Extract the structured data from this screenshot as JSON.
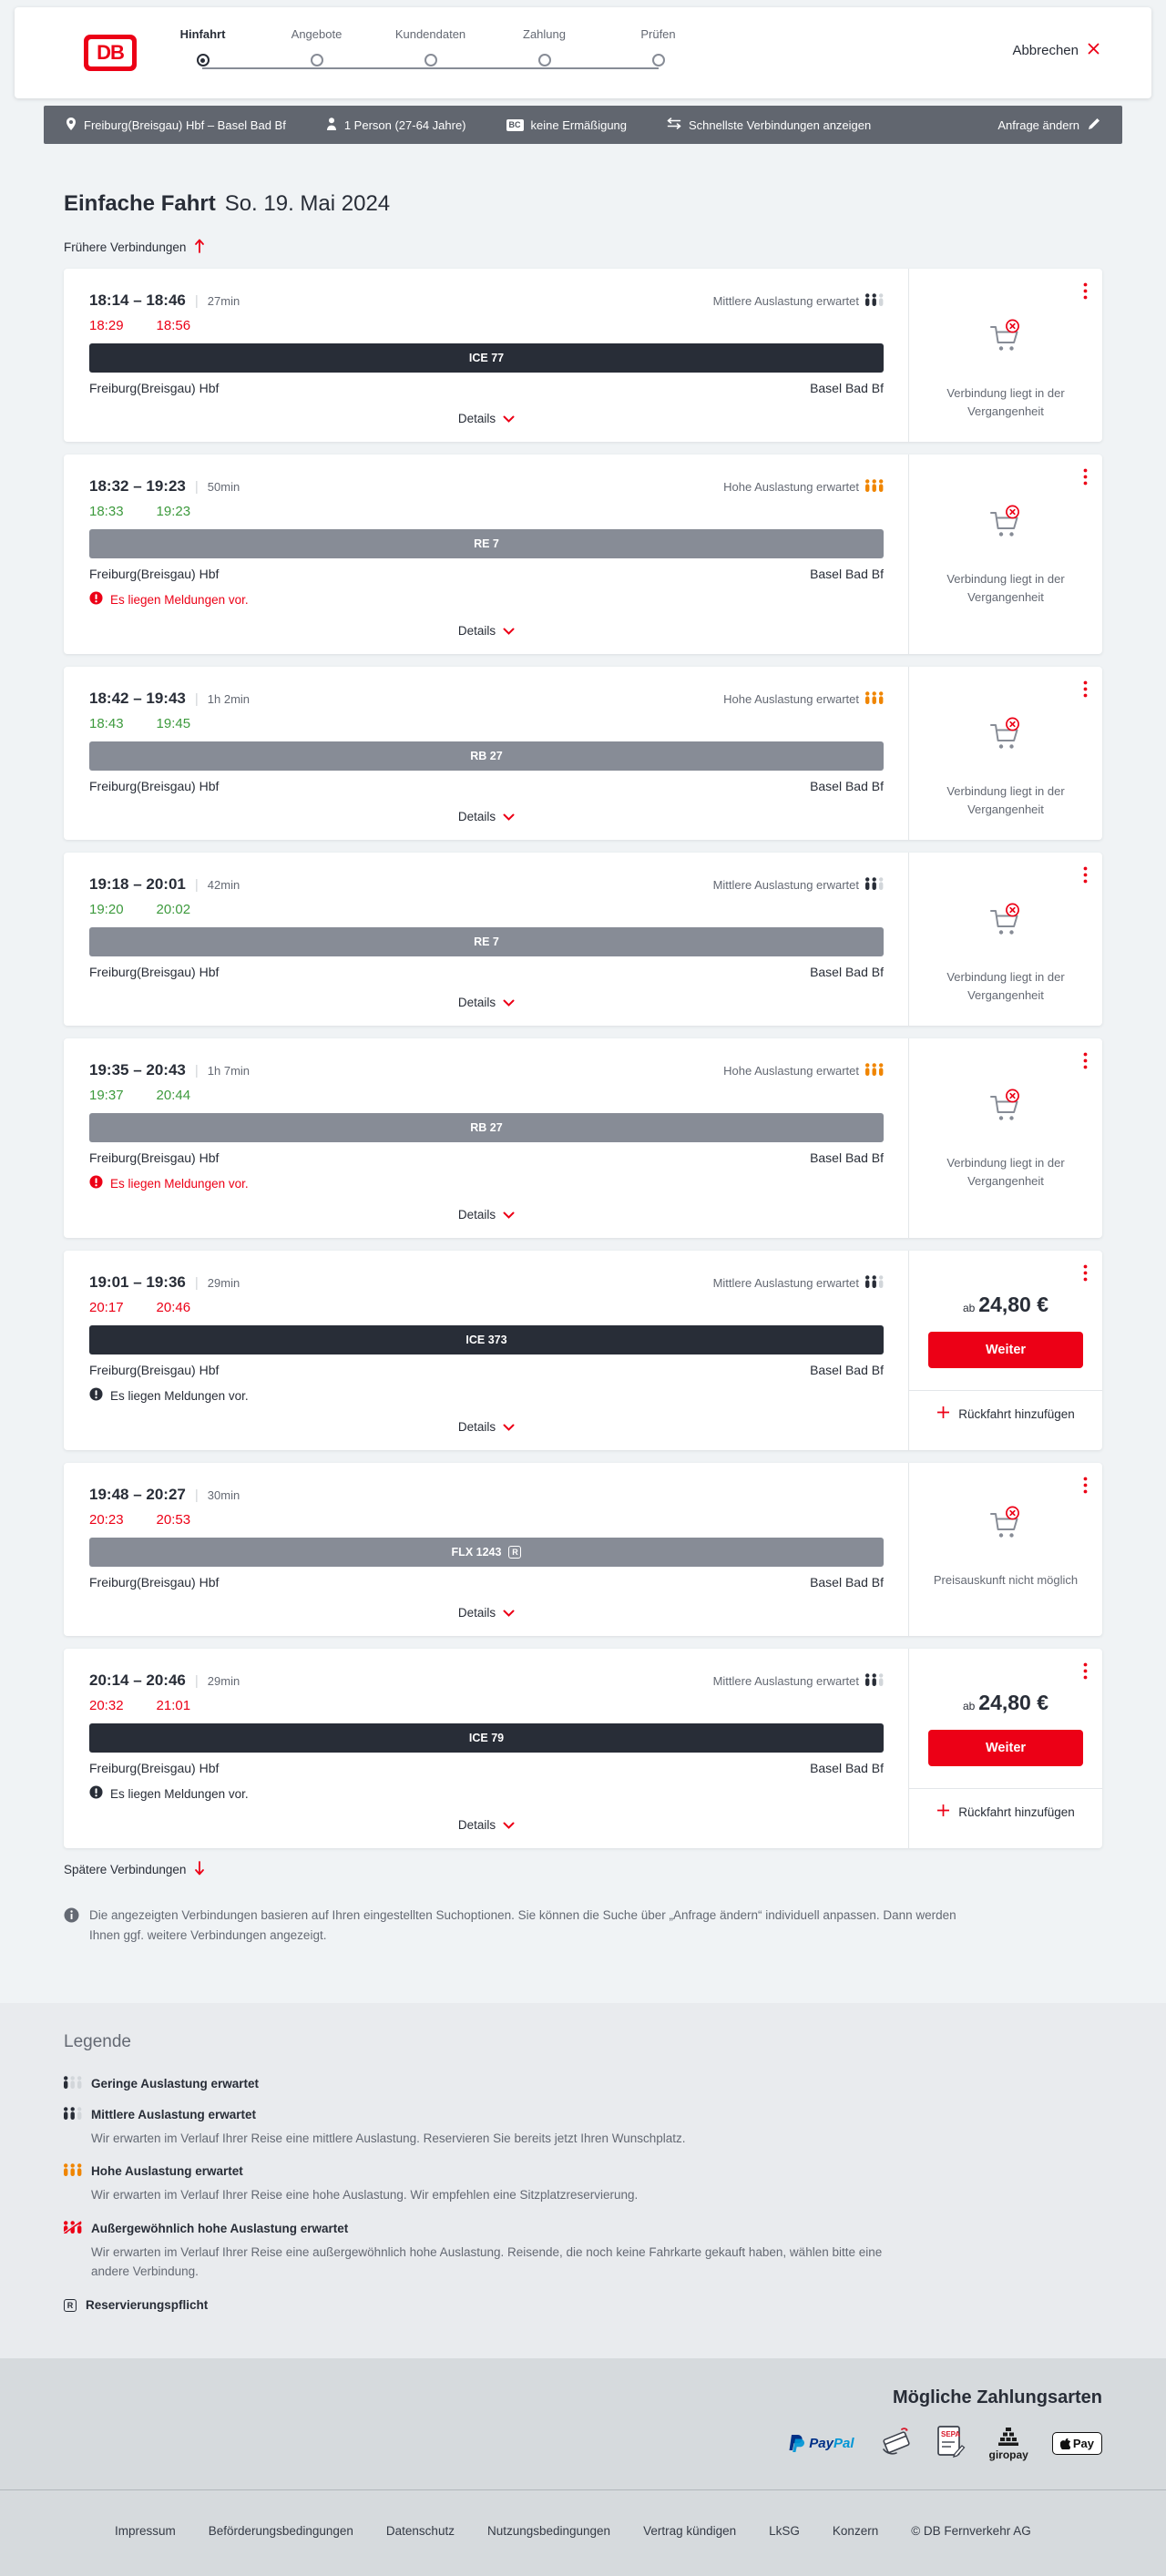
{
  "header": {
    "logo_text": "DB",
    "steps": [
      {
        "label": "Hinfahrt",
        "active": true
      },
      {
        "label": "Angebote",
        "active": false
      },
      {
        "label": "Kundendaten",
        "active": false
      },
      {
        "label": "Zahlung",
        "active": false
      },
      {
        "label": "Prüfen",
        "active": false
      }
    ],
    "cancel_label": "Abbrechen"
  },
  "summary": {
    "route": "Freiburg(Breisgau) Hbf – Basel Bad Bf",
    "passengers": "1 Person (27-64 Jahre)",
    "discount_badge": "BC",
    "discount": "keine Ermäßigung",
    "fastest": "Schnellste Verbindungen anzeigen",
    "change_request": "Anfrage ändern"
  },
  "results": {
    "title_bold": "Einfache Fahrt",
    "title_date": "So. 19. Mai 2024",
    "earlier_label": "Frühere Verbindungen",
    "later_label": "Spätere Verbindungen",
    "info_text": "Die angezeigten Verbindungen basieren auf Ihren eingestellten Suchoptionen. Sie können die Suche über „Anfrage ändern“ individuell anpassen. Dann werden Ihnen ggf. weitere Verbindungen angezeigt."
  },
  "connections": [
    {
      "time_range": "18:14 – 18:46",
      "duration": "27min",
      "occupancy": "Mittlere Auslastung erwartet",
      "occupancy_level": "mittel",
      "rt_dep": "18:29",
      "rt_arr": "18:56",
      "rt_status": "delayed",
      "train": {
        "label": "ICE 77",
        "color": "dark",
        "reservation_required": false
      },
      "from": "Freiburg(Breisgau) Hbf",
      "to": "Basel Bad Bf",
      "message": null,
      "details_label": "Details",
      "side": {
        "type": "past",
        "text": "Verbindung liegt in der Vergangenheit"
      }
    },
    {
      "time_range": "18:32 – 19:23",
      "duration": "50min",
      "occupancy": "Hohe Auslastung erwartet",
      "occupancy_level": "hoch",
      "rt_dep": "18:33",
      "rt_arr": "19:23",
      "rt_status": "ontime",
      "train": {
        "label": "RE 7",
        "color": "gray",
        "reservation_required": false
      },
      "from": "Freiburg(Breisgau) Hbf",
      "to": "Basel Bad Bf",
      "message": {
        "text": "Es liegen Meldungen vor.",
        "severity": "error"
      },
      "details_label": "Details",
      "side": {
        "type": "past",
        "text": "Verbindung liegt in der Vergangenheit"
      }
    },
    {
      "time_range": "18:42 – 19:43",
      "duration": "1h 2min",
      "occupancy": "Hohe Auslastung erwartet",
      "occupancy_level": "hoch",
      "rt_dep": "18:43",
      "rt_arr": "19:45",
      "rt_status": "ontime",
      "train": {
        "label": "RB 27",
        "color": "gray",
        "reservation_required": false
      },
      "from": "Freiburg(Breisgau) Hbf",
      "to": "Basel Bad Bf",
      "message": null,
      "details_label": "Details",
      "side": {
        "type": "past",
        "text": "Verbindung liegt in der Vergangenheit"
      }
    },
    {
      "time_range": "19:18 – 20:01",
      "duration": "42min",
      "occupancy": "Mittlere Auslastung erwartet",
      "occupancy_level": "mittel",
      "rt_dep": "19:20",
      "rt_arr": "20:02",
      "rt_status": "ontime",
      "train": {
        "label": "RE 7",
        "color": "gray",
        "reservation_required": false
      },
      "from": "Freiburg(Breisgau) Hbf",
      "to": "Basel Bad Bf",
      "message": null,
      "details_label": "Details",
      "side": {
        "type": "past",
        "text": "Verbindung liegt in der Vergangenheit"
      }
    },
    {
      "time_range": "19:35 – 20:43",
      "duration": "1h 7min",
      "occupancy": "Hohe Auslastung erwartet",
      "occupancy_level": "hoch",
      "rt_dep": "19:37",
      "rt_arr": "20:44",
      "rt_status": "ontime",
      "train": {
        "label": "RB 27",
        "color": "gray",
        "reservation_required": false
      },
      "from": "Freiburg(Breisgau) Hbf",
      "to": "Basel Bad Bf",
      "message": {
        "text": "Es liegen Meldungen vor.",
        "severity": "error"
      },
      "details_label": "Details",
      "side": {
        "type": "past",
        "text": "Verbindung liegt in der Vergangenheit"
      }
    },
    {
      "time_range": "19:01 – 19:36",
      "duration": "29min",
      "occupancy": "Mittlere Auslastung erwartet",
      "occupancy_level": "mittel",
      "rt_dep": "20:17",
      "rt_arr": "20:46",
      "rt_status": "delayed",
      "train": {
        "label": "ICE 373",
        "color": "dark",
        "reservation_required": false
      },
      "from": "Freiburg(Breisgau) Hbf",
      "to": "Basel Bad Bf",
      "message": {
        "text": "Es liegen Meldungen vor.",
        "severity": "neutral"
      },
      "details_label": "Details",
      "side": {
        "type": "price",
        "ab_label": "ab",
        "price": "24,80 €",
        "cta_label": "Weiter",
        "add_return_label": "Rückfahrt hinzufügen"
      }
    },
    {
      "time_range": "19:48 – 20:27",
      "duration": "30min",
      "occupancy": null,
      "occupancy_level": null,
      "rt_dep": "20:23",
      "rt_arr": "20:53",
      "rt_status": "delayed",
      "train": {
        "label": "FLX 1243",
        "color": "gray",
        "reservation_required": true
      },
      "from": "Freiburg(Breisgau) Hbf",
      "to": "Basel Bad Bf",
      "message": null,
      "details_label": "Details",
      "side": {
        "type": "noprice",
        "text": "Preisauskunft nicht möglich"
      }
    },
    {
      "time_range": "20:14 – 20:46",
      "duration": "29min",
      "occupancy": "Mittlere Auslastung erwartet",
      "occupancy_level": "mittel",
      "rt_dep": "20:32",
      "rt_arr": "21:01",
      "rt_status": "delayed",
      "train": {
        "label": "ICE 79",
        "color": "dark",
        "reservation_required": false
      },
      "from": "Freiburg(Breisgau) Hbf",
      "to": "Basel Bad Bf",
      "message": {
        "text": "Es liegen Meldungen vor.",
        "severity": "neutral"
      },
      "details_label": "Details",
      "side": {
        "type": "price",
        "ab_label": "ab",
        "price": "24,80 €",
        "cta_label": "Weiter",
        "add_return_label": "Rückfahrt hinzufügen"
      }
    }
  ],
  "legend": {
    "title": "Legende",
    "items": [
      {
        "icon": "occupancy",
        "level": "gering",
        "label": "Geringe Auslastung erwartet",
        "desc": null
      },
      {
        "icon": "occupancy",
        "level": "mittel",
        "label": "Mittlere Auslastung erwartet",
        "desc": "Wir erwarten im Verlauf Ihrer Reise eine mittlere Auslastung. Reservieren Sie bereits jetzt Ihren Wunschplatz."
      },
      {
        "icon": "occupancy",
        "level": "hoch",
        "label": "Hohe Auslastung erwartet",
        "desc": "Wir erwarten im Verlauf Ihrer Reise eine hohe Auslastung. Wir empfehlen eine Sitzplatzreservierung."
      },
      {
        "icon": "occupancy",
        "level": "sehr-hoch",
        "label": "Außergewöhnlich hohe Auslastung erwartet",
        "desc": "Wir erwarten im Verlauf Ihrer Reise eine außergewöhnlich hohe Auslastung. Reisende, die noch keine Fahrkarte gekauft haben, wählen bitte eine andere Verbindung."
      },
      {
        "icon": "rbox",
        "level": null,
        "label": "Reservierungspflicht",
        "desc": null
      }
    ]
  },
  "payment": {
    "title": "Mögliche Zahlungsarten",
    "methods": [
      {
        "id": "paypal",
        "label": "PayPal",
        "word1": "Pay",
        "word2": "Pal"
      },
      {
        "id": "kreditkarte",
        "label": "Kreditkarte"
      },
      {
        "id": "sepa",
        "label": "SEPA-Lastschrift",
        "word": "SEPA"
      },
      {
        "id": "giropay",
        "label": "giropay",
        "word": "giropay"
      },
      {
        "id": "applepay",
        "label": "Apple Pay",
        "word": "Pay"
      }
    ]
  },
  "footer": {
    "links": [
      "Impressum",
      "Beförderungsbedingungen",
      "Datenschutz",
      "Nutzungsbedingungen",
      "Vertrag kündigen",
      "LkSG",
      "Konzern"
    ],
    "copyright": "© DB Fernverkehr AG"
  },
  "colors": {
    "brand_red": "#ec0016",
    "green_ontime": "#3d9a3d",
    "orange_high": "#f08500",
    "dark": "#282d37"
  }
}
